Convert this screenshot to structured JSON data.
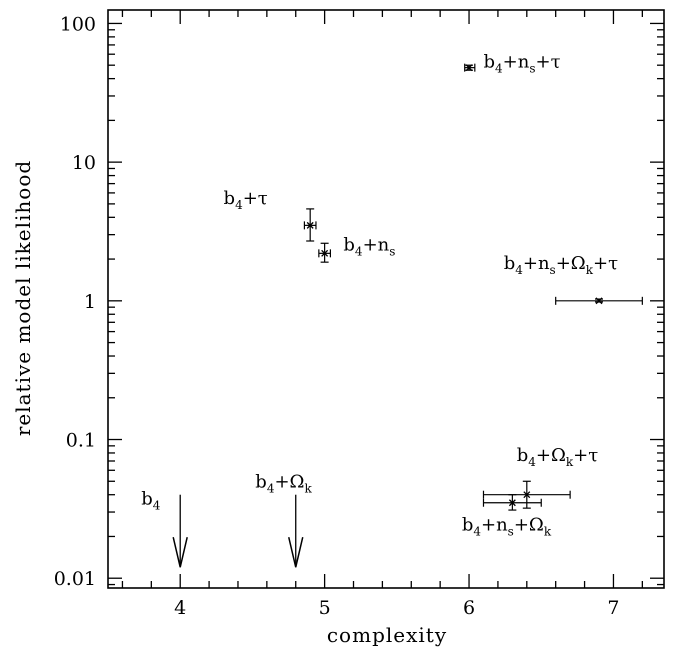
{
  "chart_data": {
    "type": "scatter",
    "title": "",
    "xlabel": "complexity",
    "ylabel": "relative model likelihood",
    "xlim": [
      3.5,
      7.35
    ],
    "ylim": [
      0.0085,
      125
    ],
    "yscale": "log",
    "grid": false,
    "legend": "none",
    "x_ticks": [
      4,
      5,
      6,
      7
    ],
    "x_tick_labels": [
      "4",
      "5",
      "6",
      "7"
    ],
    "y_ticks": [
      0.01,
      0.1,
      1,
      10,
      100
    ],
    "y_tick_labels": [
      "0.01",
      "0.1",
      "1",
      "10",
      "100"
    ],
    "points": [
      {
        "label": "b4+τ",
        "x": 4.9,
        "y": 3.5,
        "xerr": [
          4.86,
          4.94
        ],
        "yerr": [
          2.7,
          4.6
        ]
      },
      {
        "label": "b4+ns",
        "x": 5.0,
        "y": 2.2,
        "xerr": [
          4.96,
          5.04
        ],
        "yerr": [
          1.9,
          2.6
        ]
      },
      {
        "label": "b4+ns+τ",
        "x": 6.0,
        "y": 48,
        "xerr": [
          5.97,
          6.04
        ],
        "yerr": [
          46,
          50
        ]
      },
      {
        "label": "b4+ns+Ωk+τ",
        "x": 6.9,
        "y": 1.0,
        "xerr": [
          6.6,
          7.2
        ],
        "yerr": [
          0.98,
          1.03
        ]
      },
      {
        "label": "b4+Ωk+τ",
        "x": 6.4,
        "y": 0.04,
        "xerr": [
          6.1,
          6.7
        ],
        "yerr": [
          0.032,
          0.05
        ]
      },
      {
        "label": "b4+ns+Ωk",
        "x": 6.3,
        "y": 0.035,
        "xerr": [
          6.1,
          6.5
        ],
        "yerr": [
          0.031,
          0.04
        ]
      }
    ],
    "upper_limits": [
      {
        "label": "b4",
        "x": 4.0,
        "y_from": 0.04,
        "y_to": 0.012
      },
      {
        "label": "b4+Ωk",
        "x": 4.8,
        "y_from": 0.04,
        "y_to": 0.012
      }
    ],
    "annotations": [
      {
        "base": "b",
        "sub": "4",
        "rest": [
          {
            "t": "+n"
          },
          {
            "s": "s"
          },
          {
            "t": "+τ"
          }
        ],
        "x": 6.1,
        "y": 48
      },
      {
        "base": "b",
        "sub": "4",
        "rest": [
          {
            "t": "+τ"
          }
        ],
        "x": 4.3,
        "y": 5.0
      },
      {
        "base": "b",
        "sub": "4",
        "rest": [
          {
            "t": "+n"
          },
          {
            "s": "s"
          }
        ],
        "x": 5.13,
        "y": 2.3
      },
      {
        "base": "b",
        "sub": "4",
        "rest": [
          {
            "t": "+n"
          },
          {
            "s": "s"
          },
          {
            "t": "+Ω"
          },
          {
            "s": "k"
          },
          {
            "t": "+τ"
          }
        ],
        "x": 6.24,
        "y": 1.7
      },
      {
        "base": "b",
        "sub": "4",
        "rest": [
          {
            "t": "+Ω"
          },
          {
            "s": "k"
          },
          {
            "t": "+τ"
          }
        ],
        "x": 6.33,
        "y": 0.07
      },
      {
        "base": "b",
        "sub": "4",
        "rest": [
          {
            "t": "+n"
          },
          {
            "s": "s"
          },
          {
            "t": "+Ω"
          },
          {
            "s": "k"
          }
        ],
        "x": 5.95,
        "y": 0.022
      },
      {
        "base": "b",
        "sub": "4",
        "rest": [],
        "x": 3.73,
        "y": 0.034
      },
      {
        "base": "b",
        "sub": "4",
        "rest": [
          {
            "t": "+Ω"
          },
          {
            "s": "k"
          }
        ],
        "x": 4.52,
        "y": 0.045
      }
    ]
  }
}
